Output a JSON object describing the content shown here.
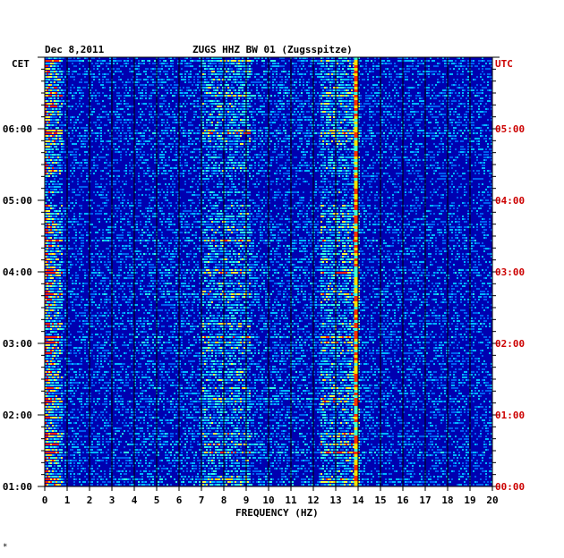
{
  "header": {
    "date": "Dec 8,2011",
    "station": "ZUGS HHZ BW 01 (Zugsspitze)"
  },
  "left_zone": "CET",
  "right_zone": "UTC",
  "colors": {
    "background": "#0000b0",
    "grid": "#000000",
    "left_labels": "#000000",
    "right_labels": "#cc0000"
  },
  "chart_data": {
    "type": "heatmap",
    "title": "ZUGS HHZ BW 01 (Zugsspitze)",
    "xlabel": "FREQUENCY (HZ)",
    "ylabel": "",
    "xlim": [
      0,
      20
    ],
    "x_ticks": [
      "0",
      "1",
      "2",
      "3",
      "4",
      "5",
      "6",
      "7",
      "8",
      "9",
      "10",
      "11",
      "12",
      "13",
      "14",
      "15",
      "16",
      "17",
      "18",
      "19",
      "20"
    ],
    "y_ticks_left": [
      "01:00",
      "02:00",
      "03:00",
      "04:00",
      "05:00",
      "06:00"
    ],
    "y_ticks_right": [
      "00:00",
      "01:00",
      "02:00",
      "03:00",
      "04:00",
      "05:00"
    ],
    "persistent_lines_hz": [
      13.9
    ],
    "active_bands_hz": [
      [
        0.1,
        0.8
      ],
      [
        7.0,
        9.2
      ],
      [
        12.3,
        14.0
      ]
    ]
  },
  "footer_mark": "*"
}
